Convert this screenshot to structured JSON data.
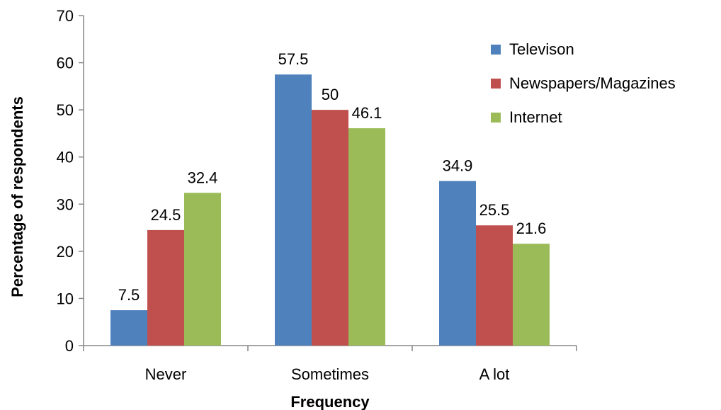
{
  "chart_data": {
    "type": "bar",
    "title": "",
    "xlabel": "Frequency",
    "ylabel": "Percentage of respondents",
    "categories": [
      "Never",
      "Sometimes",
      "A lot"
    ],
    "series": [
      {
        "name": "Televison",
        "color": "#4f81bd",
        "values": [
          7.5,
          57.5,
          34.9
        ],
        "labels": [
          "7.5",
          "57.5",
          "34.9"
        ]
      },
      {
        "name": "Newspapers/Magazines",
        "color": "#c0504d",
        "values": [
          24.5,
          50,
          25.5
        ],
        "labels": [
          "24.5",
          "50",
          "25.5"
        ]
      },
      {
        "name": "Internet",
        "color": "#9bbb59",
        "values": [
          32.4,
          46.1,
          21.6
        ],
        "labels": [
          "32.4",
          "46.1",
          "21.6"
        ]
      }
    ],
    "ylim": [
      0,
      70
    ],
    "yticks": [
      0,
      10,
      20,
      30,
      40,
      50,
      60,
      70
    ],
    "ytick_labels": [
      "0",
      "10",
      "20",
      "30",
      "40",
      "50",
      "60",
      "70"
    ],
    "grid": false,
    "legend_position": "right"
  }
}
